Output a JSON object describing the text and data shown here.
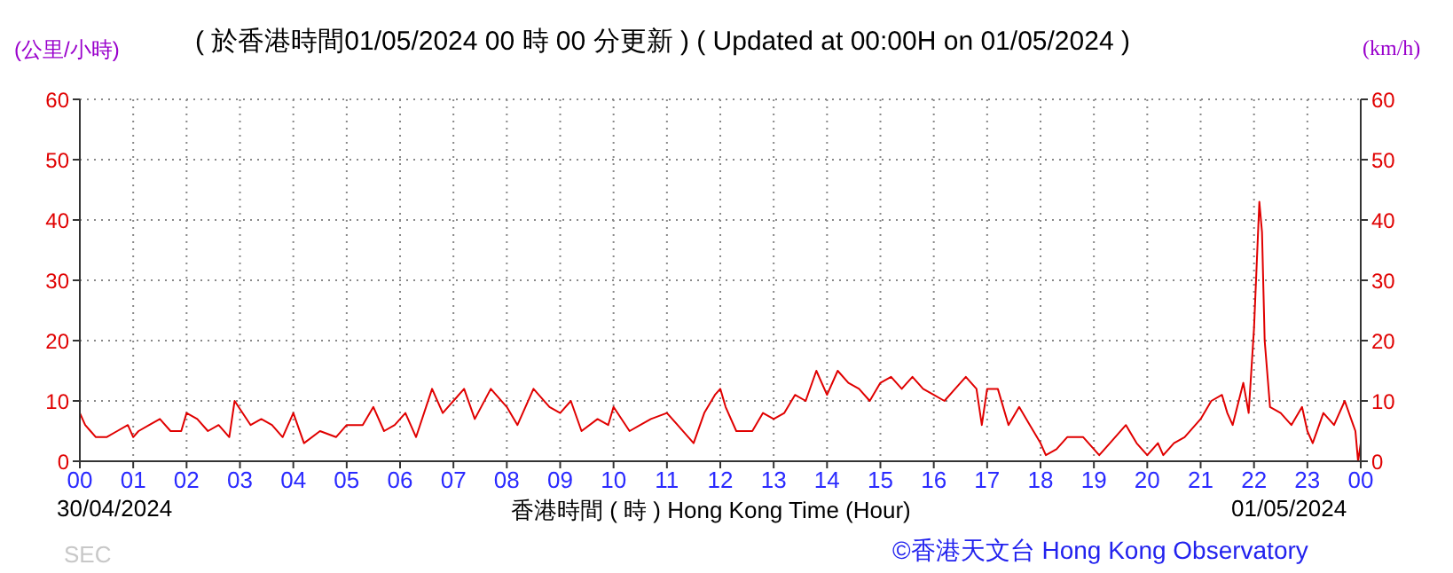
{
  "chart_data": {
    "type": "line",
    "title": "( 於香港時間01/05/2024 00 時 00 分更新 ) ( Updated at 00:00H on 01/05/2024 )",
    "xlabel": "香港時間 ( 時 ) Hong Kong Time (Hour)",
    "ylabel": "(公里/小時)",
    "y2label": "(km/h)",
    "annotations": [
      "30/04/2024",
      "01/05/2024",
      "©香港天文台 Hong Kong Observatory",
      "SEC"
    ],
    "x": [
      0,
      0.1,
      0.2,
      0.3,
      0.5,
      0.7,
      0.9,
      1.0,
      1.1,
      1.3,
      1.5,
      1.7,
      1.9,
      2.0,
      2.2,
      2.4,
      2.6,
      2.8,
      2.9,
      3.2,
      3.4,
      3.6,
      3.8,
      4.0,
      4.2,
      4.5,
      4.8,
      5.0,
      5.3,
      5.5,
      5.7,
      5.9,
      6.1,
      6.3,
      6.6,
      6.8,
      7.0,
      7.2,
      7.4,
      7.7,
      8.0,
      8.2,
      8.5,
      8.8,
      9.0,
      9.2,
      9.4,
      9.7,
      9.9,
      10.0,
      10.3,
      10.5,
      10.7,
      11.0,
      11.2,
      11.5,
      11.7,
      11.9,
      12.0,
      12.1,
      12.3,
      12.6,
      12.8,
      13.0,
      13.2,
      13.4,
      13.6,
      13.8,
      14.0,
      14.2,
      14.4,
      14.6,
      14.8,
      15.0,
      15.2,
      15.4,
      15.6,
      15.8,
      16.0,
      16.2,
      16.4,
      16.6,
      16.8,
      16.9,
      17.0,
      17.2,
      17.4,
      17.6,
      17.8,
      18.0,
      18.1,
      18.3,
      18.5,
      18.8,
      19.0,
      19.1,
      19.3,
      19.6,
      19.8,
      20.0,
      20.2,
      20.3,
      20.5,
      20.7,
      21.0,
      21.2,
      21.4,
      21.5,
      21.6,
      21.8,
      21.9,
      22.0,
      22.1,
      22.15,
      22.2,
      22.3,
      22.5,
      22.7,
      22.9,
      23.0,
      23.1,
      23.3,
      23.5,
      23.7,
      23.9,
      23.95,
      24
    ],
    "series": [
      {
        "color": "#e00000",
        "values": [
          8,
          6,
          5,
          4,
          4,
          5,
          6,
          4,
          5,
          6,
          7,
          5,
          5,
          8,
          7,
          5,
          6,
          4,
          10,
          6,
          7,
          6,
          4,
          8,
          3,
          5,
          4,
          6,
          6,
          9,
          5,
          6,
          8,
          4,
          12,
          8,
          10,
          12,
          7,
          12,
          9,
          6,
          12,
          9,
          8,
          10,
          5,
          7,
          6,
          9,
          5,
          6,
          7,
          8,
          6,
          3,
          8,
          11,
          12,
          9,
          5,
          5,
          8,
          7,
          8,
          11,
          10,
          15,
          11,
          15,
          13,
          12,
          10,
          13,
          14,
          12,
          14,
          12,
          11,
          10,
          12,
          14,
          12,
          6,
          12,
          12,
          6,
          9,
          6,
          3,
          1,
          2,
          4,
          4,
          2,
          1,
          3,
          6,
          3,
          1,
          3,
          1,
          3,
          4,
          7,
          10,
          11,
          8,
          6,
          13,
          8,
          22,
          43,
          38,
          20,
          9,
          8,
          6,
          9,
          5,
          3,
          8,
          6,
          10,
          5,
          0,
          3
        ]
      }
    ],
    "xlim": [
      0,
      24
    ],
    "xticks": [
      {
        "value": 0,
        "label": "00"
      },
      {
        "value": 1,
        "label": "01"
      },
      {
        "value": 2,
        "label": "02"
      },
      {
        "value": 3,
        "label": "03"
      },
      {
        "value": 4,
        "label": "04"
      },
      {
        "value": 5,
        "label": "05"
      },
      {
        "value": 6,
        "label": "06"
      },
      {
        "value": 7,
        "label": "07"
      },
      {
        "value": 8,
        "label": "08"
      },
      {
        "value": 9,
        "label": "09"
      },
      {
        "value": 10,
        "label": "10"
      },
      {
        "value": 11,
        "label": "11"
      },
      {
        "value": 12,
        "label": "12"
      },
      {
        "value": 13,
        "label": "13"
      },
      {
        "value": 14,
        "label": "14"
      },
      {
        "value": 15,
        "label": "15"
      },
      {
        "value": 16,
        "label": "16"
      },
      {
        "value": 17,
        "label": "17"
      },
      {
        "value": 18,
        "label": "18"
      },
      {
        "value": 19,
        "label": "19"
      },
      {
        "value": 20,
        "label": "20"
      },
      {
        "value": 21,
        "label": "21"
      },
      {
        "value": 22,
        "label": "22"
      },
      {
        "value": 23,
        "label": "23"
      },
      {
        "value": 24,
        "label": "00"
      }
    ],
    "ylim": [
      0,
      60
    ],
    "yticks": [
      0,
      10,
      20,
      30,
      40,
      50,
      60
    ],
    "y2lim": [
      0,
      60
    ],
    "y2ticks": [
      0,
      10,
      20,
      30,
      40,
      50,
      60
    ],
    "grid": true,
    "marker": "none",
    "line_style": "solid"
  }
}
